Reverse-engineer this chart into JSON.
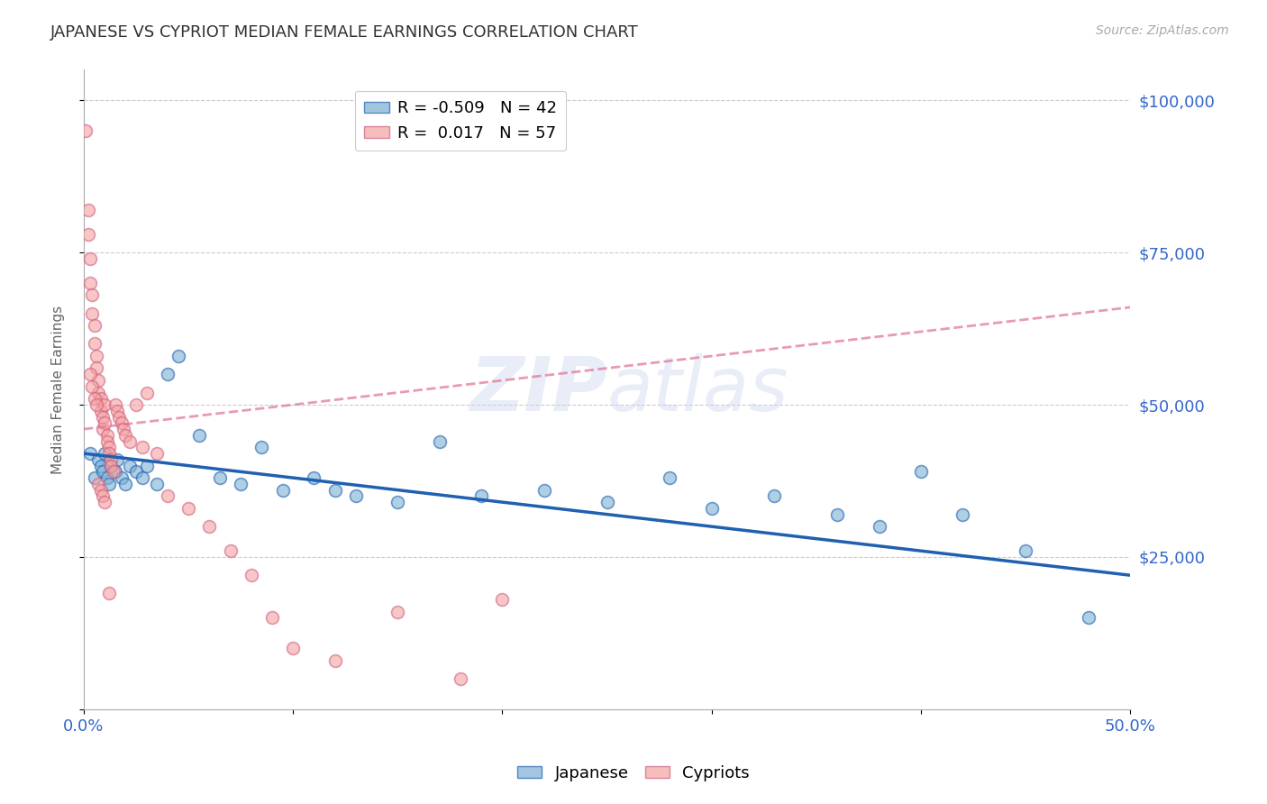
{
  "title": "JAPANESE VS CYPRIOT MEDIAN FEMALE EARNINGS CORRELATION CHART",
  "source": "Source: ZipAtlas.com",
  "ylabel": "Median Female Earnings",
  "watermark": "ZIPatlas",
  "xlim": [
    0.0,
    0.5
  ],
  "ylim": [
    0,
    105000
  ],
  "yticks": [
    0,
    25000,
    50000,
    75000,
    100000
  ],
  "ytick_labels": [
    "",
    "$25,000",
    "$50,000",
    "$75,000",
    "$100,000"
  ],
  "xtick_positions": [
    0.0,
    0.1,
    0.2,
    0.3,
    0.4,
    0.5
  ],
  "xtick_labels": [
    "0.0%",
    "",
    "",
    "",
    "",
    "50.0%"
  ],
  "legend_r_japanese": "-0.509",
  "legend_n_japanese": "42",
  "legend_r_cypriot": "0.017",
  "legend_n_cypriot": "57",
  "blue_color": "#7BAFD4",
  "pink_color": "#F4A0A0",
  "blue_line_color": "#2060B0",
  "pink_line_color": "#E07090",
  "axis_label_color": "#3366CC",
  "japanese_x": [
    0.003,
    0.005,
    0.007,
    0.008,
    0.009,
    0.01,
    0.011,
    0.012,
    0.013,
    0.015,
    0.016,
    0.018,
    0.02,
    0.022,
    0.025,
    0.028,
    0.03,
    0.035,
    0.04,
    0.045,
    0.055,
    0.065,
    0.075,
    0.085,
    0.095,
    0.11,
    0.12,
    0.13,
    0.15,
    0.17,
    0.19,
    0.22,
    0.25,
    0.28,
    0.3,
    0.33,
    0.36,
    0.38,
    0.4,
    0.42,
    0.45,
    0.48
  ],
  "japanese_y": [
    42000,
    38000,
    41000,
    40000,
    39000,
    42000,
    38000,
    37000,
    40000,
    39000,
    41000,
    38000,
    37000,
    40000,
    39000,
    38000,
    40000,
    37000,
    55000,
    58000,
    45000,
    38000,
    37000,
    43000,
    36000,
    38000,
    36000,
    35000,
    34000,
    44000,
    35000,
    36000,
    34000,
    38000,
    33000,
    35000,
    32000,
    30000,
    39000,
    32000,
    26000,
    15000
  ],
  "cypriot_x": [
    0.001,
    0.002,
    0.002,
    0.003,
    0.003,
    0.004,
    0.004,
    0.005,
    0.005,
    0.006,
    0.006,
    0.007,
    0.007,
    0.008,
    0.008,
    0.009,
    0.009,
    0.01,
    0.01,
    0.011,
    0.011,
    0.012,
    0.012,
    0.013,
    0.013,
    0.014,
    0.015,
    0.016,
    0.017,
    0.018,
    0.019,
    0.02,
    0.022,
    0.025,
    0.028,
    0.03,
    0.035,
    0.04,
    0.05,
    0.06,
    0.07,
    0.08,
    0.09,
    0.1,
    0.12,
    0.15,
    0.18,
    0.2,
    0.003,
    0.004,
    0.005,
    0.006,
    0.007,
    0.008,
    0.009,
    0.01,
    0.012
  ],
  "cypriot_y": [
    95000,
    82000,
    78000,
    74000,
    70000,
    68000,
    65000,
    63000,
    60000,
    58000,
    56000,
    54000,
    52000,
    51000,
    49000,
    48000,
    46000,
    50000,
    47000,
    45000,
    44000,
    43000,
    42000,
    41000,
    40000,
    39000,
    50000,
    49000,
    48000,
    47000,
    46000,
    45000,
    44000,
    50000,
    43000,
    52000,
    42000,
    35000,
    33000,
    30000,
    26000,
    22000,
    15000,
    10000,
    8000,
    16000,
    5000,
    18000,
    55000,
    53000,
    51000,
    50000,
    37000,
    36000,
    35000,
    34000,
    19000
  ]
}
